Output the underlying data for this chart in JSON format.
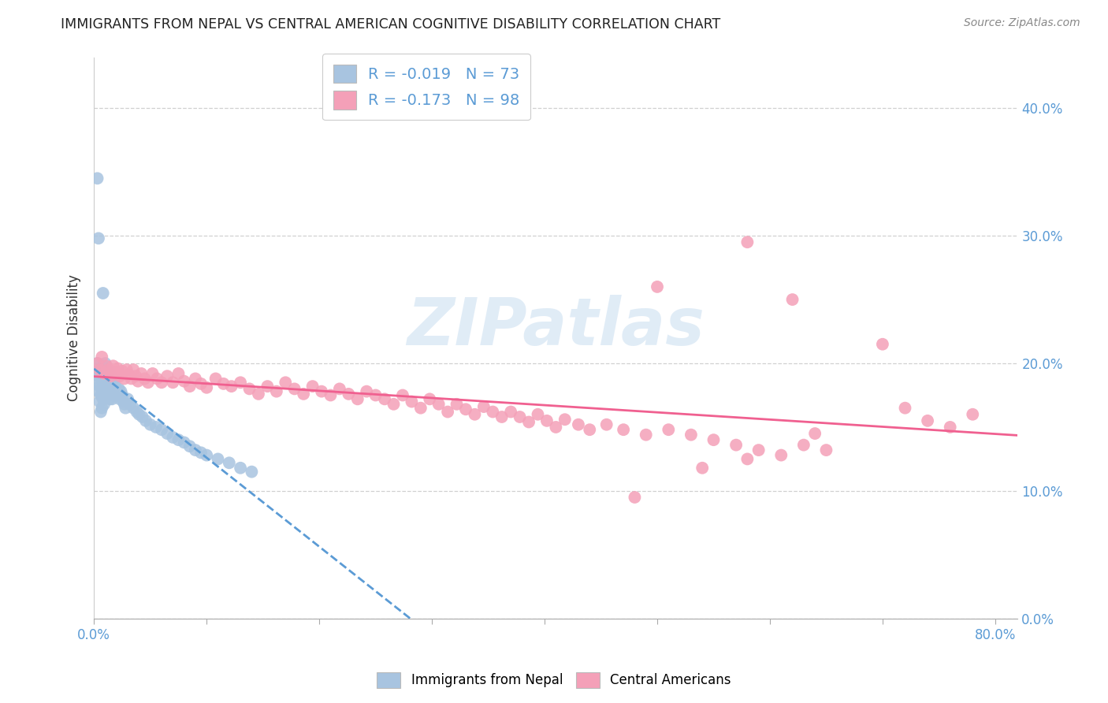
{
  "title": "IMMIGRANTS FROM NEPAL VS CENTRAL AMERICAN COGNITIVE DISABILITY CORRELATION CHART",
  "source": "Source: ZipAtlas.com",
  "ylabel_label": "Cognitive Disability",
  "xlim": [
    0.0,
    0.82
  ],
  "ylim": [
    0.0,
    0.44
  ],
  "yticks": [
    0.0,
    0.1,
    0.2,
    0.3,
    0.4
  ],
  "xticks": [
    0.0,
    0.1,
    0.2,
    0.3,
    0.4,
    0.5,
    0.6,
    0.7,
    0.8
  ],
  "watermark": "ZIPatlas",
  "legend1_label": "R = -0.019   N = 73",
  "legend2_label": "R = -0.173   N = 98",
  "series1_color": "#a8c4e0",
  "series2_color": "#f4a0b8",
  "trendline1_color": "#5b9bd5",
  "trendline2_color": "#f06090",
  "tick_color": "#5b9bd5",
  "grid_color": "#d0d0d0",
  "nepal_x": [
    0.002,
    0.003,
    0.003,
    0.004,
    0.004,
    0.005,
    0.005,
    0.005,
    0.006,
    0.006,
    0.006,
    0.007,
    0.007,
    0.007,
    0.008,
    0.008,
    0.008,
    0.009,
    0.009,
    0.009,
    0.01,
    0.01,
    0.01,
    0.011,
    0.011,
    0.012,
    0.012,
    0.013,
    0.013,
    0.014,
    0.014,
    0.015,
    0.015,
    0.016,
    0.016,
    0.017,
    0.018,
    0.018,
    0.019,
    0.02,
    0.021,
    0.022,
    0.023,
    0.024,
    0.025,
    0.026,
    0.027,
    0.028,
    0.03,
    0.032,
    0.035,
    0.038,
    0.04,
    0.043,
    0.046,
    0.05,
    0.055,
    0.06,
    0.065,
    0.07,
    0.075,
    0.08,
    0.085,
    0.09,
    0.095,
    0.1,
    0.11,
    0.12,
    0.13,
    0.14,
    0.003,
    0.004,
    0.008
  ],
  "nepal_y": [
    0.195,
    0.2,
    0.185,
    0.19,
    0.178,
    0.195,
    0.182,
    0.17,
    0.188,
    0.175,
    0.162,
    0.195,
    0.178,
    0.165,
    0.198,
    0.185,
    0.172,
    0.192,
    0.18,
    0.168,
    0.2,
    0.188,
    0.175,
    0.195,
    0.182,
    0.192,
    0.178,
    0.188,
    0.175,
    0.185,
    0.172,
    0.19,
    0.178,
    0.185,
    0.172,
    0.18,
    0.188,
    0.175,
    0.182,
    0.178,
    0.175,
    0.18,
    0.172,
    0.178,
    0.175,
    0.17,
    0.168,
    0.165,
    0.172,
    0.168,
    0.165,
    0.162,
    0.16,
    0.158,
    0.155,
    0.152,
    0.15,
    0.148,
    0.145,
    0.142,
    0.14,
    0.138,
    0.135,
    0.132,
    0.13,
    0.128,
    0.125,
    0.122,
    0.118,
    0.115,
    0.345,
    0.298,
    0.255
  ],
  "central_x": [
    0.003,
    0.005,
    0.007,
    0.009,
    0.011,
    0.013,
    0.015,
    0.017,
    0.019,
    0.021,
    0.023,
    0.025,
    0.027,
    0.029,
    0.031,
    0.033,
    0.035,
    0.037,
    0.039,
    0.042,
    0.045,
    0.048,
    0.052,
    0.056,
    0.06,
    0.065,
    0.07,
    0.075,
    0.08,
    0.085,
    0.09,
    0.095,
    0.1,
    0.108,
    0.115,
    0.122,
    0.13,
    0.138,
    0.146,
    0.154,
    0.162,
    0.17,
    0.178,
    0.186,
    0.194,
    0.202,
    0.21,
    0.218,
    0.226,
    0.234,
    0.242,
    0.25,
    0.258,
    0.266,
    0.274,
    0.282,
    0.29,
    0.298,
    0.306,
    0.314,
    0.322,
    0.33,
    0.338,
    0.346,
    0.354,
    0.362,
    0.37,
    0.378,
    0.386,
    0.394,
    0.402,
    0.41,
    0.418,
    0.43,
    0.44,
    0.455,
    0.47,
    0.49,
    0.51,
    0.53,
    0.55,
    0.57,
    0.59,
    0.61,
    0.63,
    0.65,
    0.5,
    0.58,
    0.62,
    0.7,
    0.72,
    0.74,
    0.76,
    0.78,
    0.58,
    0.64,
    0.54,
    0.48
  ],
  "central_y": [
    0.2,
    0.195,
    0.205,
    0.192,
    0.198,
    0.195,
    0.19,
    0.198,
    0.193,
    0.196,
    0.19,
    0.194,
    0.188,
    0.195,
    0.191,
    0.188,
    0.195,
    0.19,
    0.186,
    0.192,
    0.188,
    0.185,
    0.192,
    0.188,
    0.185,
    0.19,
    0.185,
    0.192,
    0.186,
    0.182,
    0.188,
    0.184,
    0.181,
    0.188,
    0.184,
    0.182,
    0.185,
    0.18,
    0.176,
    0.182,
    0.178,
    0.185,
    0.18,
    0.176,
    0.182,
    0.178,
    0.175,
    0.18,
    0.176,
    0.172,
    0.178,
    0.175,
    0.172,
    0.168,
    0.175,
    0.17,
    0.165,
    0.172,
    0.168,
    0.162,
    0.168,
    0.164,
    0.16,
    0.166,
    0.162,
    0.158,
    0.162,
    0.158,
    0.154,
    0.16,
    0.155,
    0.15,
    0.156,
    0.152,
    0.148,
    0.152,
    0.148,
    0.144,
    0.148,
    0.144,
    0.14,
    0.136,
    0.132,
    0.128,
    0.136,
    0.132,
    0.26,
    0.295,
    0.25,
    0.215,
    0.165,
    0.155,
    0.15,
    0.16,
    0.125,
    0.145,
    0.118,
    0.095
  ]
}
